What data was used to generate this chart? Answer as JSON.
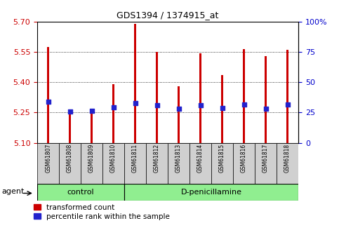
{
  "title": "GDS1394 / 1374915_at",
  "samples": [
    "GSM61807",
    "GSM61808",
    "GSM61809",
    "GSM61810",
    "GSM61811",
    "GSM61812",
    "GSM61813",
    "GSM61814",
    "GSM61815",
    "GSM61816",
    "GSM61817",
    "GSM61818"
  ],
  "transformed_count": [
    5.575,
    5.255,
    5.243,
    5.392,
    5.69,
    5.552,
    5.38,
    5.545,
    5.435,
    5.565,
    5.53,
    5.56
  ],
  "percentile_rank_vals": [
    5.305,
    5.255,
    5.26,
    5.275,
    5.295,
    5.285,
    5.268,
    5.285,
    5.272,
    5.288,
    5.268,
    5.29
  ],
  "ylim_left": [
    5.1,
    5.7
  ],
  "yticks_left": [
    5.1,
    5.25,
    5.4,
    5.55,
    5.7
  ],
  "ylim_right": [
    0,
    100
  ],
  "yticks_right": [
    0,
    25,
    50,
    75,
    100
  ],
  "yticklabels_right": [
    "0",
    "25",
    "50",
    "75",
    "100%"
  ],
  "bar_color": "#cc0000",
  "dot_color": "#2222cc",
  "tick_color_left": "#cc0000",
  "tick_color_right": "#0000cc",
  "n_control": 4,
  "n_treat": 8,
  "group_labels": [
    "control",
    "D-penicillamine"
  ],
  "legend_labels": [
    "transformed count",
    "percentile rank within the sample"
  ],
  "agent_label": "agent",
  "bg_plot": "#ffffff",
  "bg_sample": "#d0d0d0",
  "bg_group": "#90ee90",
  "bar_width": 0.12
}
